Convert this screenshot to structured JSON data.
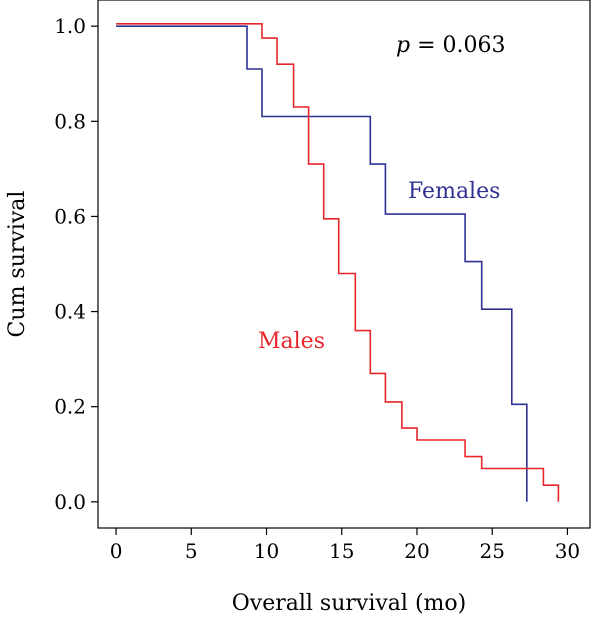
{
  "chart_data": {
    "type": "line",
    "step": true,
    "xlabel": "Overall survival (mo)",
    "ylabel": "Cum survival",
    "xlim": [
      -1.2,
      31.5
    ],
    "ylim": [
      -0.055,
      1.055
    ],
    "xticks": [
      0,
      5,
      10,
      15,
      20,
      25,
      30
    ],
    "yticks": [
      0.0,
      0.2,
      0.4,
      0.6,
      0.8,
      1.0
    ],
    "ytick_labels": [
      "0.0",
      "0.2",
      "0.4",
      "0.6",
      "0.8",
      "1.0"
    ],
    "annotation": {
      "italic": "p",
      "text": " = 0.063"
    },
    "legend": "inline",
    "series": [
      {
        "name": "Females",
        "color": "#2e3192",
        "points": [
          [
            0,
            1.0
          ],
          [
            8.7,
            1.0
          ],
          [
            8.7,
            0.91
          ],
          [
            9.7,
            0.91
          ],
          [
            9.7,
            0.81
          ],
          [
            16.9,
            0.81
          ],
          [
            16.9,
            0.71
          ],
          [
            17.9,
            0.71
          ],
          [
            17.9,
            0.605
          ],
          [
            23.2,
            0.605
          ],
          [
            23.2,
            0.505
          ],
          [
            24.3,
            0.505
          ],
          [
            24.3,
            0.405
          ],
          [
            26.3,
            0.405
          ],
          [
            26.3,
            0.205
          ],
          [
            27.3,
            0.205
          ],
          [
            27.3,
            0.0
          ]
        ]
      },
      {
        "name": "Males",
        "color": "#e8262c",
        "points": [
          [
            0,
            1.005
          ],
          [
            9.7,
            1.005
          ],
          [
            9.7,
            0.975
          ],
          [
            10.7,
            0.975
          ],
          [
            10.7,
            0.92
          ],
          [
            11.8,
            0.92
          ],
          [
            11.8,
            0.83
          ],
          [
            12.8,
            0.83
          ],
          [
            12.8,
            0.71
          ],
          [
            13.8,
            0.71
          ],
          [
            13.8,
            0.595
          ],
          [
            14.8,
            0.595
          ],
          [
            14.8,
            0.48
          ],
          [
            15.9,
            0.48
          ],
          [
            15.9,
            0.36
          ],
          [
            16.9,
            0.36
          ],
          [
            16.9,
            0.27
          ],
          [
            17.9,
            0.27
          ],
          [
            17.9,
            0.21
          ],
          [
            19.0,
            0.21
          ],
          [
            19.0,
            0.155
          ],
          [
            20.0,
            0.155
          ],
          [
            20.0,
            0.13
          ],
          [
            23.2,
            0.13
          ],
          [
            23.2,
            0.095
          ],
          [
            24.3,
            0.095
          ],
          [
            24.3,
            0.07
          ],
          [
            28.4,
            0.07
          ],
          [
            28.4,
            0.035
          ],
          [
            29.4,
            0.035
          ],
          [
            29.4,
            0.0
          ]
        ]
      }
    ]
  }
}
